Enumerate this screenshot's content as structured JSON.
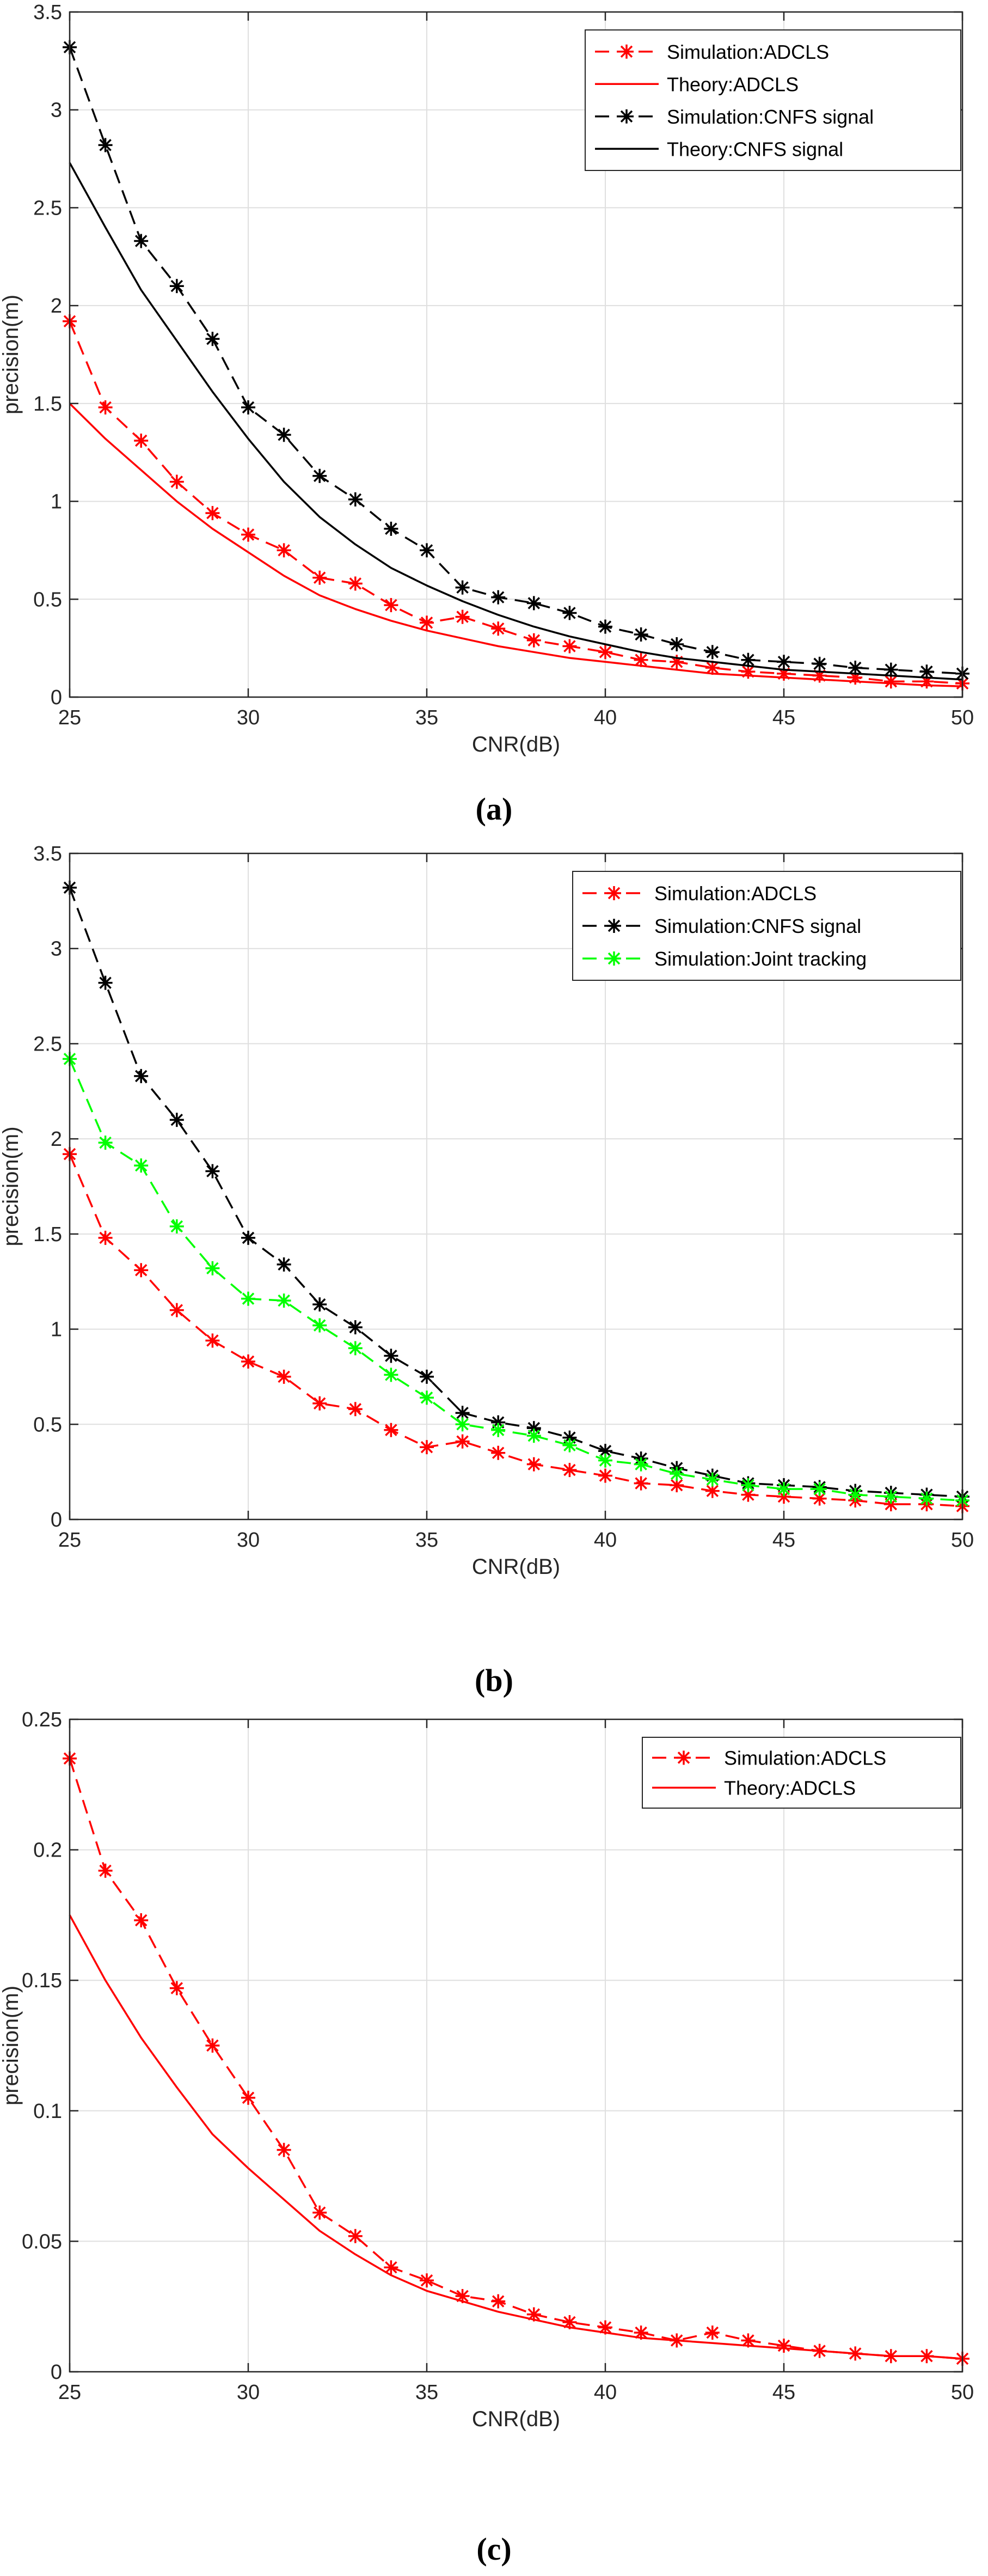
{
  "chart_data": [
    {
      "id": "a",
      "caption": "(a)",
      "type": "line",
      "xlabel": "CNR(dB)",
      "ylabel": "precision(m)",
      "xlim": [
        25,
        50
      ],
      "ylim": [
        0,
        3.5
      ],
      "xticks": [
        25,
        30,
        35,
        40,
        45,
        50
      ],
      "yticks": [
        0,
        0.5,
        1,
        1.5,
        2,
        2.5,
        3,
        3.5
      ],
      "ytick_labels": [
        "0",
        "0.5",
        "1",
        "1.5",
        "2",
        "2.5",
        "3",
        "3.5"
      ],
      "grid": true,
      "legend_position": "top-right",
      "series": [
        {
          "name": "Simulation:ADCLS",
          "color": "#ff0000",
          "dashed": true,
          "marker": true,
          "x": [
            25,
            26,
            27,
            28,
            29,
            30,
            31,
            32,
            33,
            34,
            35,
            36,
            37,
            38,
            39,
            40,
            41,
            42,
            43,
            44,
            45,
            46,
            47,
            48,
            49,
            50
          ],
          "values": [
            1.92,
            1.48,
            1.31,
            1.1,
            0.94,
            0.83,
            0.75,
            0.61,
            0.58,
            0.47,
            0.38,
            0.41,
            0.35,
            0.29,
            0.26,
            0.23,
            0.19,
            0.18,
            0.15,
            0.13,
            0.12,
            0.11,
            0.1,
            0.08,
            0.08,
            0.07
          ]
        },
        {
          "name": "Theory:ADCLS",
          "color": "#ff0000",
          "dashed": false,
          "marker": false,
          "x": [
            25,
            26,
            27,
            28,
            29,
            30,
            31,
            32,
            33,
            34,
            35,
            36,
            37,
            38,
            39,
            40,
            41,
            42,
            43,
            44,
            45,
            46,
            47,
            48,
            49,
            50
          ],
          "values": [
            1.5,
            1.32,
            1.16,
            1.0,
            0.86,
            0.74,
            0.62,
            0.52,
            0.45,
            0.39,
            0.34,
            0.3,
            0.26,
            0.23,
            0.2,
            0.18,
            0.16,
            0.14,
            0.12,
            0.11,
            0.1,
            0.09,
            0.08,
            0.07,
            0.06,
            0.055
          ]
        },
        {
          "name": "Simulation:CNFS signal",
          "color": "#000000",
          "dashed": true,
          "marker": true,
          "x": [
            25,
            26,
            27,
            28,
            29,
            30,
            31,
            32,
            33,
            34,
            35,
            36,
            37,
            38,
            39,
            40,
            41,
            42,
            43,
            44,
            45,
            46,
            47,
            48,
            49,
            50
          ],
          "values": [
            3.32,
            2.82,
            2.33,
            2.1,
            1.83,
            1.48,
            1.34,
            1.13,
            1.01,
            0.86,
            0.75,
            0.56,
            0.51,
            0.48,
            0.43,
            0.36,
            0.32,
            0.27,
            0.23,
            0.19,
            0.18,
            0.17,
            0.15,
            0.14,
            0.13,
            0.12
          ]
        },
        {
          "name": "Theory:CNFS signal",
          "color": "#000000",
          "dashed": false,
          "marker": false,
          "x": [
            25,
            26,
            27,
            28,
            29,
            30,
            31,
            32,
            33,
            34,
            35,
            36,
            37,
            38,
            39,
            40,
            41,
            42,
            43,
            44,
            45,
            46,
            47,
            48,
            49,
            50
          ],
          "values": [
            2.73,
            2.4,
            2.08,
            1.82,
            1.56,
            1.32,
            1.1,
            0.92,
            0.78,
            0.66,
            0.57,
            0.49,
            0.42,
            0.36,
            0.31,
            0.27,
            0.23,
            0.2,
            0.18,
            0.16,
            0.14,
            0.13,
            0.12,
            0.11,
            0.1,
            0.09
          ]
        }
      ]
    },
    {
      "id": "b",
      "caption": "(b)",
      "type": "line",
      "xlabel": "CNR(dB)",
      "ylabel": "precision(m)",
      "xlim": [
        25,
        50
      ],
      "ylim": [
        0,
        3.5
      ],
      "xticks": [
        25,
        30,
        35,
        40,
        45,
        50
      ],
      "yticks": [
        0,
        0.5,
        1,
        1.5,
        2,
        2.5,
        3,
        3.5
      ],
      "ytick_labels": [
        "0",
        "0.5",
        "1",
        "1.5",
        "2",
        "2.5",
        "3",
        "3.5"
      ],
      "grid": true,
      "legend_position": "top-right",
      "series": [
        {
          "name": "Simulation:ADCLS",
          "color": "#ff0000",
          "dashed": true,
          "marker": true,
          "x": [
            25,
            26,
            27,
            28,
            29,
            30,
            31,
            32,
            33,
            34,
            35,
            36,
            37,
            38,
            39,
            40,
            41,
            42,
            43,
            44,
            45,
            46,
            47,
            48,
            49,
            50
          ],
          "values": [
            1.92,
            1.48,
            1.31,
            1.1,
            0.94,
            0.83,
            0.75,
            0.61,
            0.58,
            0.47,
            0.38,
            0.41,
            0.35,
            0.29,
            0.26,
            0.23,
            0.19,
            0.18,
            0.15,
            0.13,
            0.12,
            0.11,
            0.1,
            0.08,
            0.08,
            0.07
          ]
        },
        {
          "name": "Simulation:CNFS signal",
          "color": "#000000",
          "dashed": true,
          "marker": true,
          "x": [
            25,
            26,
            27,
            28,
            29,
            30,
            31,
            32,
            33,
            34,
            35,
            36,
            37,
            38,
            39,
            40,
            41,
            42,
            43,
            44,
            45,
            46,
            47,
            48,
            49,
            50
          ],
          "values": [
            3.32,
            2.82,
            2.33,
            2.1,
            1.83,
            1.48,
            1.34,
            1.13,
            1.01,
            0.86,
            0.75,
            0.56,
            0.51,
            0.48,
            0.43,
            0.36,
            0.32,
            0.27,
            0.23,
            0.19,
            0.18,
            0.17,
            0.15,
            0.14,
            0.13,
            0.12
          ]
        },
        {
          "name": "Simulation:Joint tracking",
          "color": "#00ff00",
          "dashed": true,
          "marker": true,
          "x": [
            25,
            26,
            27,
            28,
            29,
            30,
            31,
            32,
            33,
            34,
            35,
            36,
            37,
            38,
            39,
            40,
            41,
            42,
            43,
            44,
            45,
            46,
            47,
            48,
            49,
            50
          ],
          "values": [
            2.42,
            1.98,
            1.86,
            1.54,
            1.32,
            1.16,
            1.15,
            1.02,
            0.9,
            0.76,
            0.64,
            0.5,
            0.47,
            0.44,
            0.39,
            0.31,
            0.29,
            0.24,
            0.21,
            0.18,
            0.16,
            0.16,
            0.13,
            0.12,
            0.11,
            0.1
          ]
        }
      ]
    },
    {
      "id": "c",
      "caption": "(c)",
      "type": "line",
      "xlabel": "CNR(dB)",
      "ylabel": "precision(m)",
      "xlim": [
        25,
        50
      ],
      "ylim": [
        0,
        0.25
      ],
      "xticks": [
        25,
        30,
        35,
        40,
        45,
        50
      ],
      "yticks": [
        0,
        0.05,
        0.1,
        0.15,
        0.2,
        0.25
      ],
      "ytick_labels": [
        "0",
        "0.05",
        "0.1",
        "0.15",
        "0.2",
        "0.25"
      ],
      "grid": true,
      "legend_position": "top-right",
      "series": [
        {
          "name": "Simulation:ADCLS",
          "color": "#ff0000",
          "dashed": true,
          "marker": true,
          "x": [
            25,
            26,
            27,
            28,
            29,
            30,
            31,
            32,
            33,
            34,
            35,
            36,
            37,
            38,
            39,
            40,
            41,
            42,
            43,
            44,
            45,
            46,
            47,
            48,
            49,
            50
          ],
          "values": [
            0.235,
            0.192,
            0.173,
            0.147,
            0.125,
            0.105,
            0.085,
            0.061,
            0.052,
            0.04,
            0.035,
            0.029,
            0.027,
            0.022,
            0.019,
            0.017,
            0.015,
            0.012,
            0.015,
            0.012,
            0.01,
            0.008,
            0.007,
            0.006,
            0.006,
            0.005
          ]
        },
        {
          "name": "Theory:ADCLS",
          "color": "#ff0000",
          "dashed": false,
          "marker": false,
          "x": [
            25,
            26,
            27,
            28,
            29,
            30,
            31,
            32,
            33,
            34,
            35,
            36,
            37,
            38,
            39,
            40,
            41,
            42,
            43,
            44,
            45,
            46,
            47,
            48,
            49,
            50
          ],
          "values": [
            0.175,
            0.15,
            0.128,
            0.109,
            0.091,
            0.078,
            0.066,
            0.054,
            0.045,
            0.037,
            0.031,
            0.027,
            0.023,
            0.02,
            0.017,
            0.015,
            0.013,
            0.012,
            0.011,
            0.01,
            0.009,
            0.008,
            0.007,
            0.006,
            0.006,
            0.005
          ]
        }
      ]
    }
  ]
}
